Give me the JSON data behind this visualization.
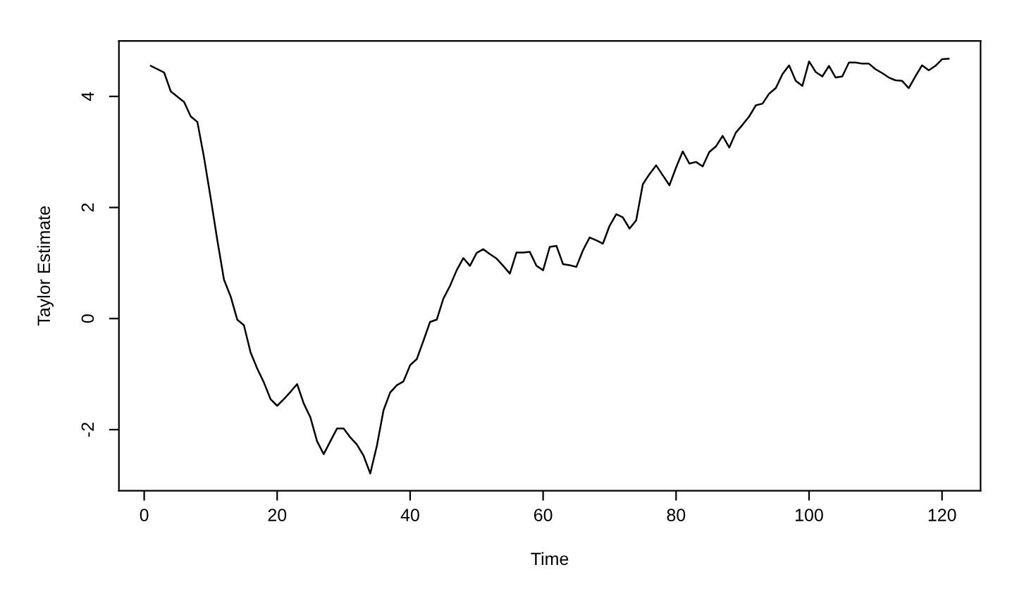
{
  "chart_data": {
    "type": "line",
    "xlabel": "Time",
    "ylabel": "Taylor Estimate",
    "series": [
      {
        "color": "#000000",
        "x": [
          1,
          3,
          4,
          6,
          7,
          8,
          9,
          10,
          11,
          12,
          13,
          14,
          15,
          16,
          17,
          18,
          19,
          20,
          21,
          22,
          23,
          24,
          25,
          26,
          27,
          28,
          29,
          30,
          31,
          32,
          33,
          34,
          35,
          36,
          37,
          38,
          39,
          40,
          41,
          42,
          43,
          44,
          45,
          46,
          47,
          48,
          49,
          50,
          51,
          52,
          53,
          54,
          55,
          56,
          57,
          58,
          59,
          60,
          61,
          62,
          63,
          64,
          65,
          66,
          67,
          68,
          69,
          70,
          71,
          72,
          73,
          74,
          75,
          76,
          77,
          78,
          79,
          80,
          81,
          82,
          83,
          84,
          85,
          86,
          87,
          88,
          89,
          90,
          91,
          92,
          93,
          94,
          95,
          96,
          97,
          98,
          99,
          100,
          101,
          102,
          103,
          104,
          105,
          106,
          107,
          108,
          109,
          110,
          111,
          112,
          113,
          114,
          115,
          116,
          117,
          118,
          119,
          120,
          121
        ],
        "values": [
          4.55,
          4.43,
          4.09,
          3.9,
          3.64,
          3.54,
          2.9,
          2.17,
          1.41,
          0.7,
          0.4,
          -0.02,
          -0.12,
          -0.61,
          -0.9,
          -1.15,
          -1.45,
          -1.57,
          -1.45,
          -1.32,
          -1.18,
          -1.53,
          -1.78,
          -2.21,
          -2.44,
          -2.21,
          -1.98,
          -1.98,
          -2.14,
          -2.27,
          -2.47,
          -2.79,
          -2.29,
          -1.65,
          -1.33,
          -1.2,
          -1.13,
          -0.84,
          -0.73,
          -0.4,
          -0.06,
          -0.02,
          0.36,
          0.59,
          0.87,
          1.09,
          0.95,
          1.18,
          1.25,
          1.16,
          1.08,
          0.95,
          0.81,
          1.19,
          1.19,
          1.2,
          0.95,
          0.87,
          1.29,
          1.31,
          0.98,
          0.96,
          0.93,
          1.23,
          1.46,
          1.41,
          1.35,
          1.67,
          1.88,
          1.82,
          1.62,
          1.77,
          2.42,
          2.6,
          2.76,
          2.58,
          2.4,
          2.72,
          3.01,
          2.79,
          2.82,
          2.74,
          3.0,
          3.1,
          3.29,
          3.08,
          3.35,
          3.49,
          3.64,
          3.84,
          3.87,
          4.05,
          4.15,
          4.4,
          4.56,
          4.28,
          4.19,
          4.63,
          4.44,
          4.36,
          4.55,
          4.34,
          4.36,
          4.61,
          4.61,
          4.59,
          4.59,
          4.49,
          4.42,
          4.34,
          4.29,
          4.28,
          4.15,
          4.36,
          4.56,
          4.47,
          4.55,
          4.67,
          4.68
        ]
      }
    ],
    "xlim": [
      -3.8,
      125.8
    ],
    "ylim": [
      -3.1,
      5.0
    ],
    "xticks": [
      0,
      20,
      40,
      60,
      80,
      100,
      120
    ],
    "yticks": [
      -2,
      0,
      2,
      4
    ],
    "grid": false,
    "line_style": "solid"
  }
}
